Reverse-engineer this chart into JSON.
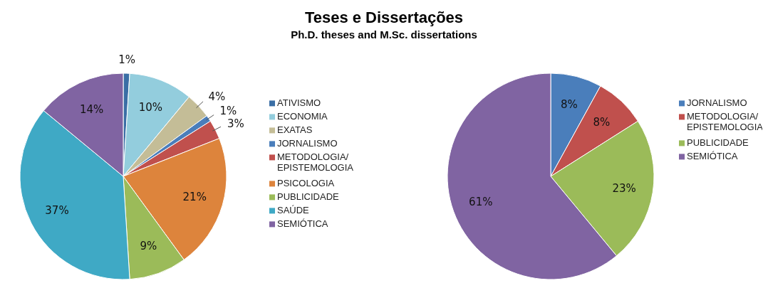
{
  "chart_data": [
    {
      "type": "pie",
      "title": "Teses e Dissertações",
      "subtitle": "Ph.D. theses and M.Sc. dissertations",
      "legend": "right",
      "categories": [
        "ATIVISMO",
        "ECONOMIA",
        "EXATAS",
        "JORNALISMO",
        "METODOLOGIA/EPISTEMOLOGIA",
        "PSICOLOGIA",
        "PUBLICIDADE",
        "SAÚDE",
        "SEMIÓTICA"
      ],
      "values": [
        1,
        10,
        4,
        1,
        3,
        21,
        9,
        37,
        14
      ],
      "value_labels": [
        "1%",
        "10%",
        "4%",
        "1%",
        "3%",
        "21%",
        "9%",
        "37%",
        "14%"
      ],
      "colors": [
        "#3a6ea5",
        "#93cddd",
        "#c4bd97",
        "#4a7ebb",
        "#c0504d",
        "#dd843c",
        "#9bbb59",
        "#3fa9c5",
        "#8064a2"
      ]
    },
    {
      "type": "pie",
      "legend": "right",
      "categories": [
        "JORNALISMO",
        "METODOLOGIA/EPISTEMOLOGIA",
        "PUBLICIDADE",
        "SEMIÓTICA"
      ],
      "values": [
        8,
        8,
        23,
        61
      ],
      "value_labels": [
        "8%",
        "8%",
        "23%",
        "61%"
      ],
      "colors": [
        "#4a7ebb",
        "#c0504d",
        "#9bbb59",
        "#8064a2"
      ]
    }
  ]
}
